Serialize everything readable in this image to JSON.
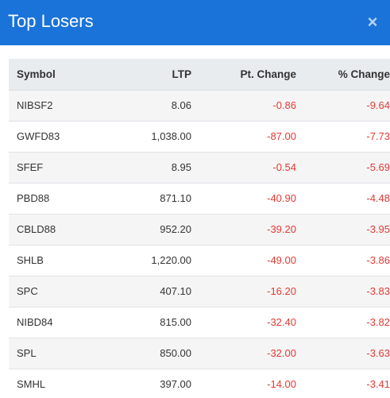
{
  "modal": {
    "title": "Top Losers",
    "close_icon": "×"
  },
  "colors": {
    "header_bg": "#1a73d9",
    "negative": "#e53935"
  },
  "table": {
    "headers": {
      "symbol": "Symbol",
      "ltp": "LTP",
      "pt_change": "Pt. Change",
      "pct_change": "% Change"
    },
    "rows": [
      {
        "symbol": "NIBSF2",
        "ltp": "8.06",
        "pt_change": "-0.86",
        "pct_change": "-9.64"
      },
      {
        "symbol": "GWFD83",
        "ltp": "1,038.00",
        "pt_change": "-87.00",
        "pct_change": "-7.73"
      },
      {
        "symbol": "SFEF",
        "ltp": "8.95",
        "pt_change": "-0.54",
        "pct_change": "-5.69"
      },
      {
        "symbol": "PBD88",
        "ltp": "871.10",
        "pt_change": "-40.90",
        "pct_change": "-4.48"
      },
      {
        "symbol": "CBLD88",
        "ltp": "952.20",
        "pt_change": "-39.20",
        "pct_change": "-3.95"
      },
      {
        "symbol": "SHLB",
        "ltp": "1,220.00",
        "pt_change": "-49.00",
        "pct_change": "-3.86"
      },
      {
        "symbol": "SPC",
        "ltp": "407.10",
        "pt_change": "-16.20",
        "pct_change": "-3.83"
      },
      {
        "symbol": "NIBD84",
        "ltp": "815.00",
        "pt_change": "-32.40",
        "pct_change": "-3.82"
      },
      {
        "symbol": "SPL",
        "ltp": "850.00",
        "pt_change": "-32.00",
        "pct_change": "-3.63"
      },
      {
        "symbol": "SMHL",
        "ltp": "397.00",
        "pt_change": "-14.00",
        "pct_change": "-3.41"
      }
    ]
  }
}
